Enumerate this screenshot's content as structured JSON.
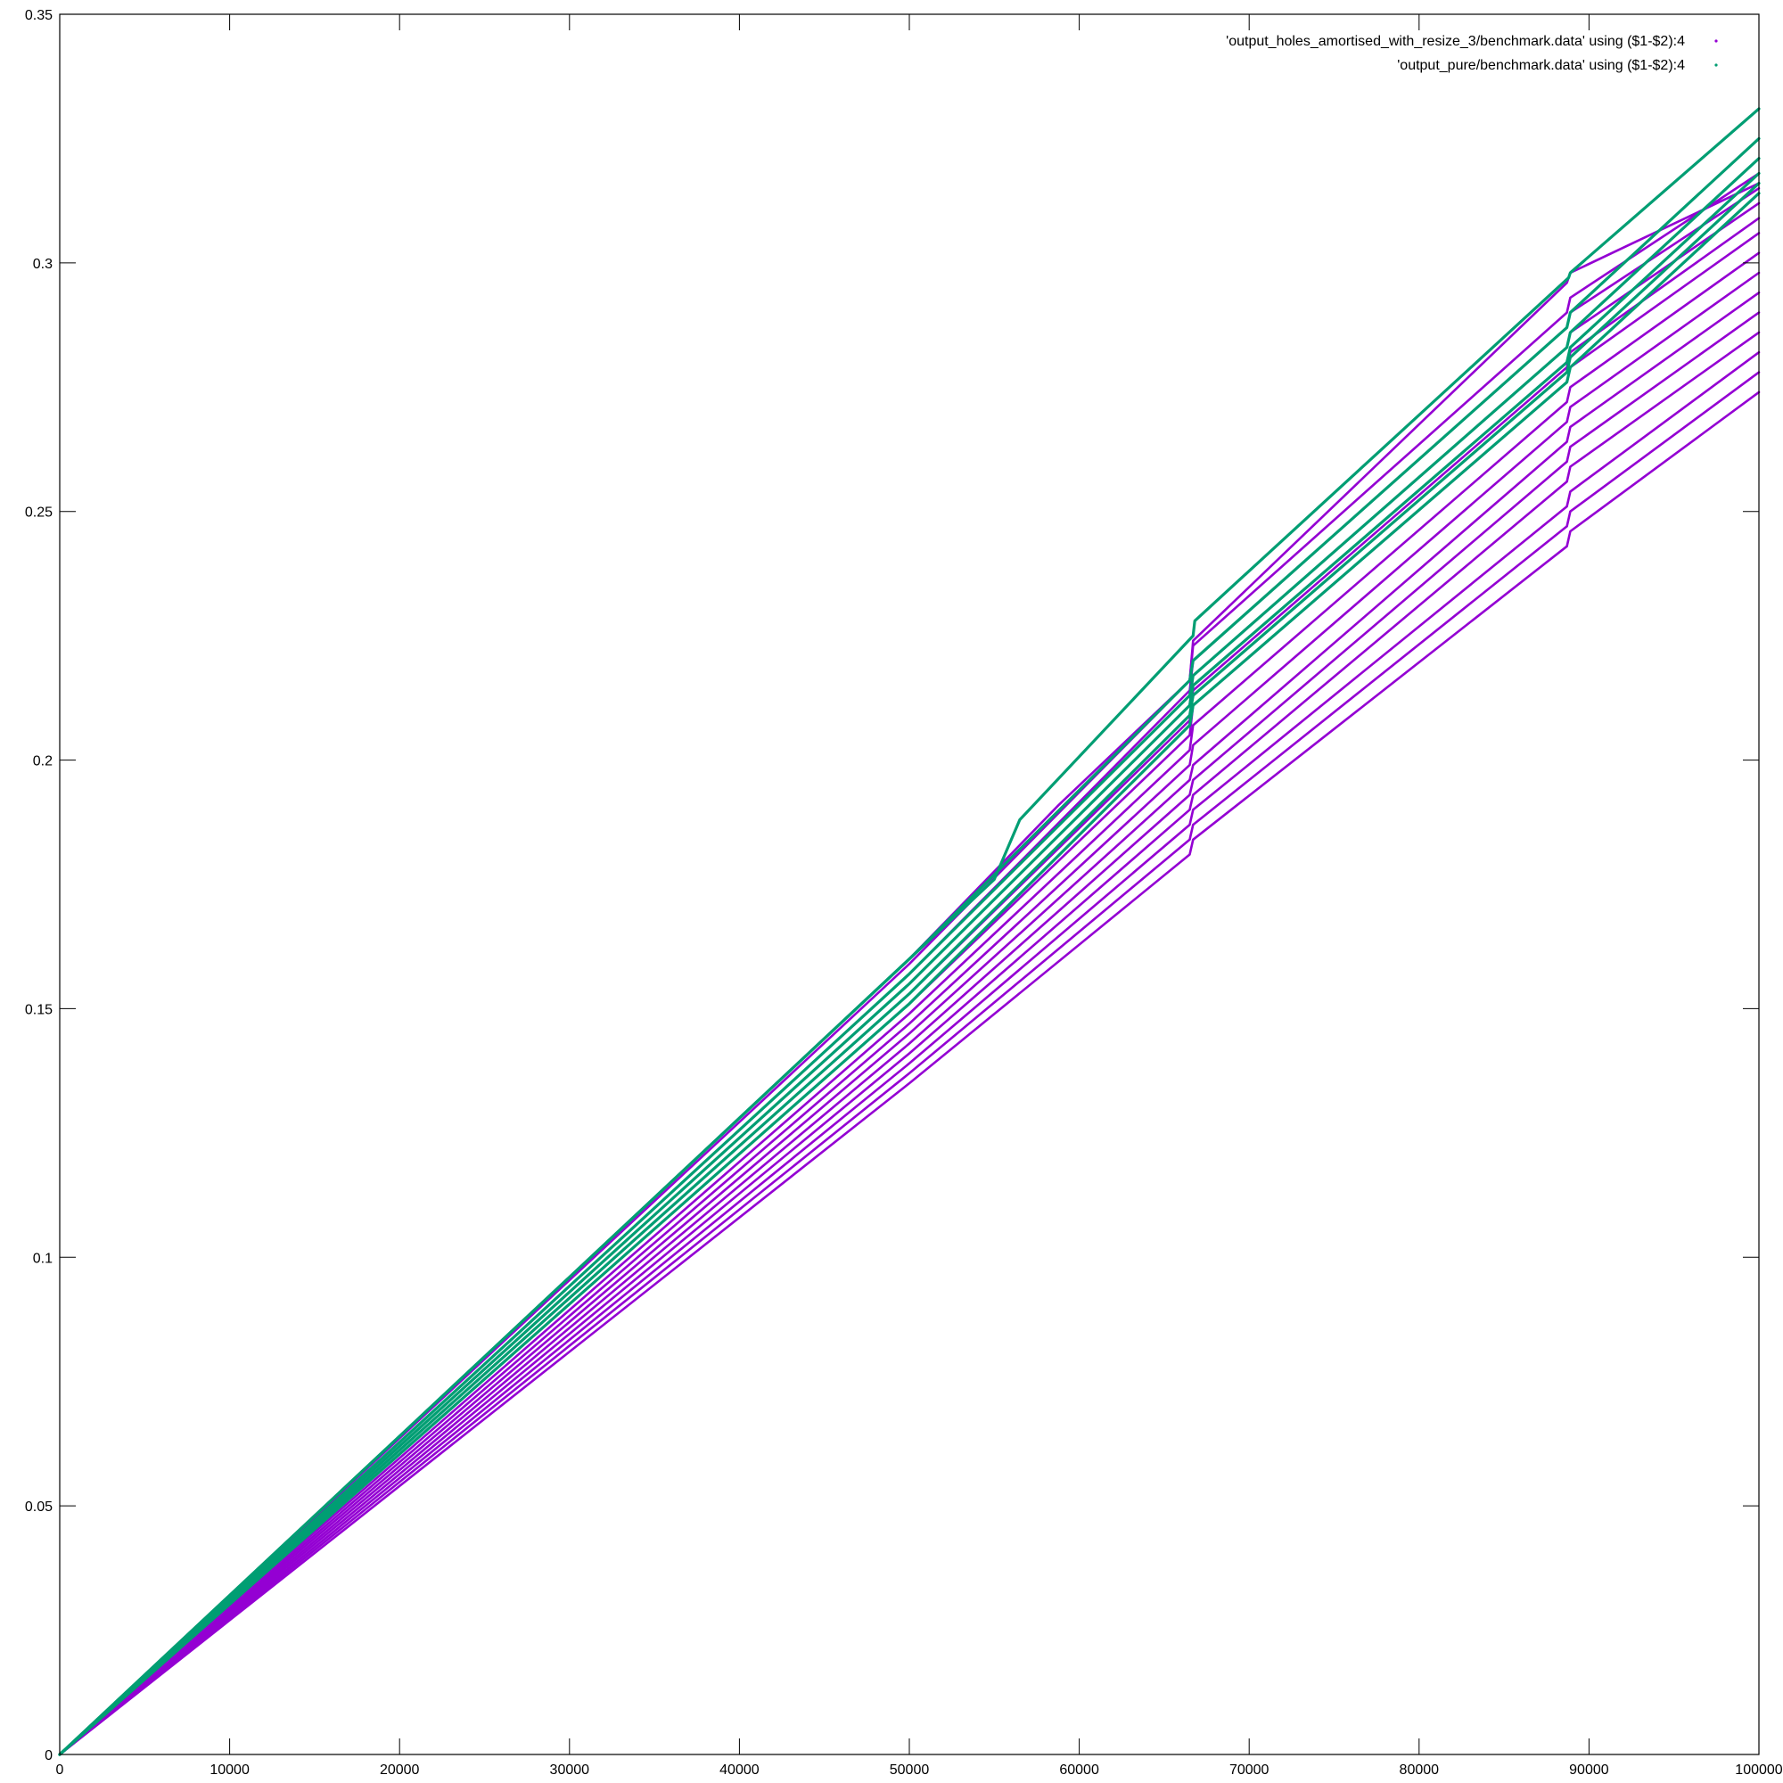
{
  "chart_data": {
    "type": "scatter",
    "title": "",
    "xlabel": "",
    "ylabel": "",
    "xlim": [
      0,
      100000
    ],
    "ylim": [
      0,
      0.35
    ],
    "grid": false,
    "legend_position": "top-right",
    "x_ticks": [
      0,
      10000,
      20000,
      30000,
      40000,
      50000,
      60000,
      70000,
      80000,
      90000,
      100000
    ],
    "x_tick_labels": [
      "0",
      "10000",
      "20000",
      "30000",
      "40000",
      "50000",
      "60000",
      "70000",
      "80000",
      "90000",
      "100000"
    ],
    "y_ticks": [
      0,
      0.05,
      0.1,
      0.15,
      0.2,
      0.25,
      0.3,
      0.35
    ],
    "y_tick_labels": [
      "0",
      "0.05",
      "0.1",
      "0.15",
      "0.2",
      "0.25",
      "0.3",
      "0.35"
    ],
    "series": [
      {
        "name": "'output_holes_amortised_with_resize_3/benchmark.data' using ($1-$2):4",
        "color": "#9400d3",
        "runs": [
          {
            "x": [
              0,
              50000,
              66500,
              66700,
              88700,
              88900,
              100000
            ],
            "y": [
              0,
              0.135,
              0.181,
              0.184,
              0.243,
              0.246,
              0.274
            ]
          },
          {
            "x": [
              0,
              50000,
              66500,
              66700,
              88700,
              88900,
              100000
            ],
            "y": [
              0,
              0.137,
              0.184,
              0.187,
              0.247,
              0.25,
              0.278
            ]
          },
          {
            "x": [
              0,
              50000,
              66500,
              66700,
              88700,
              88900,
              100000
            ],
            "y": [
              0,
              0.139,
              0.187,
              0.19,
              0.251,
              0.254,
              0.282
            ]
          },
          {
            "x": [
              0,
              50000,
              66500,
              66700,
              88700,
              88900,
              100000
            ],
            "y": [
              0,
              0.141,
              0.19,
              0.193,
              0.256,
              0.259,
              0.286
            ]
          },
          {
            "x": [
              0,
              50000,
              66500,
              66700,
              88700,
              88900,
              100000
            ],
            "y": [
              0,
              0.143,
              0.193,
              0.196,
              0.26,
              0.263,
              0.29
            ]
          },
          {
            "x": [
              0,
              50000,
              66500,
              66700,
              88700,
              88900,
              100000
            ],
            "y": [
              0,
              0.145,
              0.196,
              0.199,
              0.264,
              0.267,
              0.294
            ]
          },
          {
            "x": [
              0,
              50000,
              66500,
              66700,
              88700,
              88900,
              100000
            ],
            "y": [
              0,
              0.147,
              0.199,
              0.203,
              0.268,
              0.271,
              0.298
            ]
          },
          {
            "x": [
              0,
              50000,
              66500,
              66700,
              88700,
              88900,
              100000
            ],
            "y": [
              0,
              0.149,
              0.202,
              0.207,
              0.272,
              0.275,
              0.302
            ]
          },
          {
            "x": [
              0,
              50000,
              66500,
              66700,
              88700,
              88900,
              100000
            ],
            "y": [
              0,
              0.151,
              0.205,
              0.211,
              0.276,
              0.279,
              0.306
            ]
          },
          {
            "x": [
              0,
              50000,
              66500,
              66700,
              88700,
              88900,
              100000
            ],
            "y": [
              0,
              0.153,
              0.208,
              0.214,
              0.279,
              0.282,
              0.309
            ]
          },
          {
            "x": [
              0,
              50000,
              66500,
              66700,
              88700,
              88900,
              100000
            ],
            "y": [
              0,
              0.155,
              0.211,
              0.217,
              0.283,
              0.286,
              0.312
            ]
          },
          {
            "x": [
              0,
              50000,
              66500,
              66700,
              88700,
              88900,
              100000
            ],
            "y": [
              0,
              0.157,
              0.214,
              0.22,
              0.287,
              0.29,
              0.315
            ]
          },
          {
            "x": [
              0,
              50000,
              66500,
              66700,
              88700,
              88900,
              100000
            ],
            "y": [
              0,
              0.159,
              0.216,
              0.223,
              0.29,
              0.293,
              0.318
            ]
          },
          {
            "x": [
              0,
              50000,
              58800,
              66500,
              66700,
              88700,
              88900,
              100000
            ],
            "y": [
              0,
              0.16,
              0.191,
              0.216,
              0.224,
              0.296,
              0.298,
              0.316
            ]
          }
        ]
      },
      {
        "name": "'output_pure/benchmark.data' using ($1-$2):4",
        "color": "#009e73",
        "runs": [
          {
            "x": [
              0,
              55000,
              56500,
              66700,
              66800,
              88800,
              88900,
              100000
            ],
            "y": [
              0,
              0.176,
              0.188,
              0.225,
              0.228,
              0.297,
              0.298,
              0.331
            ]
          },
          {
            "x": [
              0,
              50000,
              66500,
              66700,
              88700,
              88900,
              100000
            ],
            "y": [
              0,
              0.16,
              0.216,
              0.22,
              0.287,
              0.29,
              0.325
            ]
          },
          {
            "x": [
              0,
              50000,
              66500,
              66700,
              88700,
              88900,
              100000
            ],
            "y": [
              0,
              0.157,
              0.213,
              0.217,
              0.283,
              0.286,
              0.321
            ]
          },
          {
            "x": [
              0,
              50000,
              66500,
              66700,
              88700,
              88900,
              100000
            ],
            "y": [
              0,
              0.155,
              0.211,
              0.215,
              0.28,
              0.283,
              0.318
            ]
          },
          {
            "x": [
              0,
              50000,
              66500,
              66700,
              88700,
              88900,
              100000
            ],
            "y": [
              0,
              0.153,
              0.209,
              0.213,
              0.278,
              0.281,
              0.316
            ]
          },
          {
            "x": [
              0,
              50000,
              66500,
              66700,
              88700,
              88900,
              100000
            ],
            "y": [
              0,
              0.151,
              0.207,
              0.211,
              0.276,
              0.279,
              0.314
            ]
          }
        ]
      }
    ]
  }
}
